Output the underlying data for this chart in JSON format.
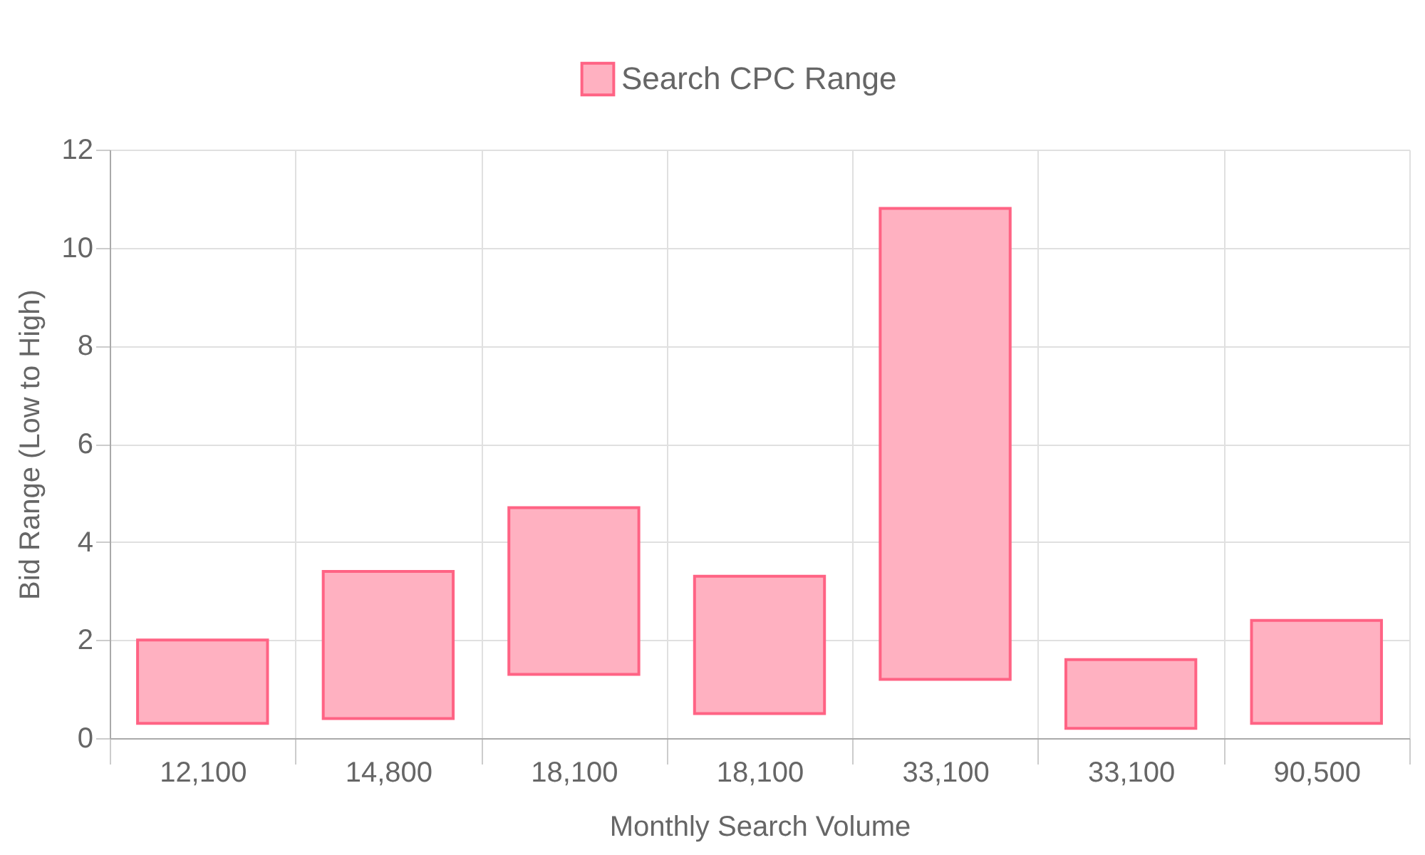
{
  "chart_data": {
    "type": "bar",
    "xlabel": "Monthly Search Volume",
    "ylabel": "Bid Range (Low to High)",
    "categories": [
      "12,100",
      "14,800",
      "18,100",
      "18,100",
      "33,100",
      "33,100",
      "90,500"
    ],
    "series": [
      {
        "name": "Search CPC Range",
        "color": "#ffb1c1",
        "values": [
          1.7,
          3.0,
          3.4,
          2.8,
          9.6,
          1.4,
          2.1
        ],
        "base": [
          0.3,
          0.4,
          1.3,
          0.5,
          1.2,
          0.2,
          0.3
        ]
      }
    ],
    "ylim": [
      0,
      12
    ],
    "yticks": [
      0,
      2,
      4,
      6,
      8,
      10,
      12
    ],
    "grid": true,
    "legend": "top"
  }
}
